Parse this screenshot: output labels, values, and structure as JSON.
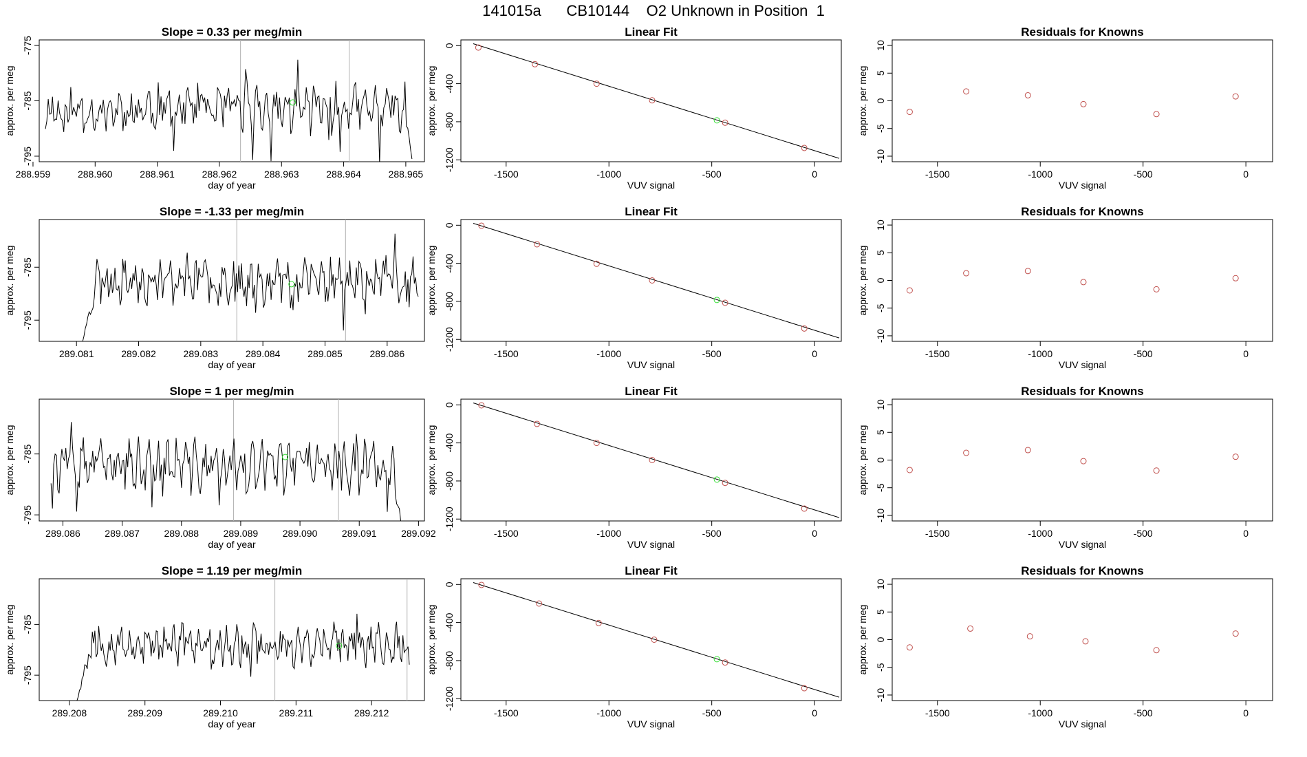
{
  "page_title": "141015a      CB10144    O2 Unknown in Position  1",
  "colors": {
    "trace": "#000000",
    "known": "#c0504d",
    "unknown": "#33dd33",
    "guide": "#b0b0b0",
    "fit": "#000000"
  },
  "chart_data": [
    {
      "type": "line",
      "role": "timeseries",
      "row": 0,
      "title": "Slope =  0.33  per meg/min",
      "xlabel": "day of year",
      "ylabel": "approx. per meg",
      "xlim": [
        288.9591,
        288.9653
      ],
      "ylim": [
        -796,
        -774
      ],
      "xticks": [
        288.959,
        288.96,
        288.961,
        288.962,
        288.963,
        288.964,
        288.965
      ],
      "xtick_labels": [
        "288.959",
        "288.960",
        "288.961",
        "288.962",
        "288.963",
        "288.964",
        "288.965"
      ],
      "yticks": [
        -775,
        -785,
        -795
      ],
      "ytick_labels": [
        "-775",
        "-785",
        "-795"
      ],
      "trace_start": 288.9592,
      "trace_end": 288.9651,
      "trace_level": -786.5,
      "trace_amp": 3.2,
      "seed": 11,
      "trace_final": -795.5,
      "vlines": [
        288.96234,
        288.96409
      ],
      "marker": {
        "x": 288.96318,
        "y": -785.3
      }
    },
    {
      "type": "scatter",
      "role": "fit",
      "row": 0,
      "title": "Linear Fit",
      "xlabel": "VUV signal",
      "ylabel": "approx. per meg",
      "xlim": [
        -1720,
        130
      ],
      "ylim": [
        -1220,
        60
      ],
      "xticks": [
        -1500,
        -1000,
        -500,
        0
      ],
      "xtick_labels": [
        "-1500",
        "-1000",
        "-500",
        "0"
      ],
      "yticks": [
        0,
        -400,
        -800,
        -1200
      ],
      "ytick_labels": [
        "0",
        "-400",
        "-800",
        "-1200"
      ],
      "line": [
        [
          -1660,
          20
        ],
        [
          120,
          -1185
        ]
      ],
      "knowns": [
        [
          -1635,
          -20
        ],
        [
          -1360,
          -195
        ],
        [
          -1060,
          -400
        ],
        [
          -790,
          -575
        ],
        [
          -435,
          -810
        ],
        [
          -50,
          -1075
        ]
      ],
      "unknown": [
        [
          -475,
          -785
        ]
      ]
    },
    {
      "type": "scatter",
      "role": "residuals",
      "row": 0,
      "title": "Residuals for Knowns",
      "xlabel": "VUV signal",
      "ylabel": "approx. per meg",
      "xlim": [
        -1720,
        130
      ],
      "ylim": [
        -11,
        11
      ],
      "xticks": [
        -1500,
        -1000,
        -500,
        0
      ],
      "xtick_labels": [
        "-1500",
        "-1000",
        "-500",
        "0"
      ],
      "yticks": [
        10,
        5,
        0,
        -5,
        -10
      ],
      "ytick_labels": [
        "10",
        "5",
        "0",
        "-5",
        "-10"
      ],
      "points": [
        [
          -1635,
          -2.0
        ],
        [
          -1360,
          1.7
        ],
        [
          -1060,
          1.0
        ],
        [
          -790,
          -0.6
        ],
        [
          -435,
          -2.4
        ],
        [
          -50,
          0.8
        ]
      ]
    },
    {
      "type": "line",
      "role": "timeseries",
      "row": 1,
      "title": "Slope =  -1.33  per meg/min",
      "xlabel": "day of year",
      "ylabel": "approx. per meg",
      "xlim": [
        289.0804,
        289.0866
      ],
      "ylim": [
        -799,
        -776
      ],
      "xticks": [
        289.081,
        289.082,
        289.083,
        289.084,
        289.085,
        289.086
      ],
      "xtick_labels": [
        "289.081",
        "289.082",
        "289.083",
        "289.084",
        "289.085",
        "289.086"
      ],
      "yticks": [
        -785,
        -795
      ],
      "ytick_labels": [
        "-785",
        "-795"
      ],
      "trace_start": 289.0811,
      "trace_end": 289.0865,
      "trace_level": -787.5,
      "trace_amp": 3.3,
      "seed": 23,
      "trace_initial": -799,
      "vlines": [
        289.08358,
        289.08533
      ],
      "marker": {
        "x": 289.08446,
        "y": -788.2
      }
    },
    {
      "type": "scatter",
      "role": "fit",
      "row": 1,
      "title": "Linear Fit",
      "xlabel": "VUV signal",
      "ylabel": "approx. per meg",
      "xlim": [
        -1720,
        130
      ],
      "ylim": [
        -1220,
        60
      ],
      "xticks": [
        -1500,
        -1000,
        -500,
        0
      ],
      "xtick_labels": [
        "-1500",
        "-1000",
        "-500",
        "0"
      ],
      "yticks": [
        0,
        -400,
        -800,
        -1200
      ],
      "ytick_labels": [
        "0",
        "-400",
        "-800",
        "-1200"
      ],
      "line": [
        [
          -1660,
          20
        ],
        [
          120,
          -1185
        ]
      ],
      "knowns": [
        [
          -1620,
          -5
        ],
        [
          -1350,
          -200
        ],
        [
          -1060,
          -405
        ],
        [
          -790,
          -580
        ],
        [
          -435,
          -815
        ],
        [
          -50,
          -1085
        ]
      ],
      "unknown": [
        [
          -475,
          -785
        ]
      ]
    },
    {
      "type": "scatter",
      "role": "residuals",
      "row": 1,
      "title": "Residuals for Knowns",
      "xlabel": "VUV signal",
      "ylabel": "approx. per meg",
      "xlim": [
        -1720,
        130
      ],
      "ylim": [
        -11,
        11
      ],
      "xticks": [
        -1500,
        -1000,
        -500,
        0
      ],
      "xtick_labels": [
        "-1500",
        "-1000",
        "-500",
        "0"
      ],
      "yticks": [
        10,
        5,
        0,
        -5,
        -10
      ],
      "ytick_labels": [
        "10",
        "5",
        "0",
        "-5",
        "-10"
      ],
      "points": [
        [
          -1635,
          -1.8
        ],
        [
          -1360,
          1.3
        ],
        [
          -1060,
          1.7
        ],
        [
          -790,
          -0.3
        ],
        [
          -435,
          -1.6
        ],
        [
          -50,
          0.4
        ]
      ]
    },
    {
      "type": "line",
      "role": "timeseries",
      "row": 2,
      "title": "Slope =  1  per meg/min",
      "xlabel": "day of year",
      "ylabel": "approx. per meg",
      "xlim": [
        289.0856,
        289.0921
      ],
      "ylim": [
        -796,
        -776
      ],
      "xticks": [
        289.086,
        289.087,
        289.088,
        289.089,
        289.09,
        289.091,
        289.092
      ],
      "xtick_labels": [
        "289.086",
        "289.087",
        "289.088",
        "289.089",
        "289.090",
        "289.091",
        "289.092"
      ],
      "yticks": [
        -785,
        -795
      ],
      "ytick_labels": [
        "-785",
        "-795"
      ],
      "trace_start": 289.0858,
      "trace_end": 289.0917,
      "trace_level": -787.0,
      "trace_amp": 3.2,
      "seed": 37,
      "trace_final": -796,
      "vlines": [
        289.08888,
        289.09065
      ],
      "marker": {
        "x": 289.08975,
        "y": -785.5
      }
    },
    {
      "type": "scatter",
      "role": "fit",
      "row": 2,
      "title": "Linear Fit",
      "xlabel": "VUV signal",
      "ylabel": "approx. per meg",
      "xlim": [
        -1720,
        130
      ],
      "ylim": [
        -1220,
        60
      ],
      "xticks": [
        -1500,
        -1000,
        -500,
        0
      ],
      "xtick_labels": [
        "-1500",
        "-1000",
        "-500",
        "0"
      ],
      "yticks": [
        0,
        -400,
        -800,
        -1200
      ],
      "ytick_labels": [
        "0",
        "-400",
        "-800",
        "-1200"
      ],
      "line": [
        [
          -1660,
          20
        ],
        [
          120,
          -1185
        ]
      ],
      "knowns": [
        [
          -1620,
          -5
        ],
        [
          -1350,
          -200
        ],
        [
          -1060,
          -400
        ],
        [
          -790,
          -580
        ],
        [
          -435,
          -820
        ],
        [
          -50,
          -1090
        ]
      ],
      "unknown": [
        [
          -475,
          -785
        ]
      ]
    },
    {
      "type": "scatter",
      "role": "residuals",
      "row": 2,
      "title": "Residuals for Knowns",
      "xlabel": "VUV signal",
      "ylabel": "approx. per meg",
      "xlim": [
        -1720,
        130
      ],
      "ylim": [
        -11,
        11
      ],
      "xticks": [
        -1500,
        -1000,
        -500,
        0
      ],
      "xtick_labels": [
        "-1500",
        "-1000",
        "-500",
        "0"
      ],
      "yticks": [
        10,
        5,
        0,
        -5,
        -10
      ],
      "ytick_labels": [
        "10",
        "5",
        "0",
        "-5",
        "-10"
      ],
      "points": [
        [
          -1635,
          -1.8
        ],
        [
          -1360,
          1.3
        ],
        [
          -1060,
          1.8
        ],
        [
          -790,
          -0.2
        ],
        [
          -435,
          -1.9
        ],
        [
          -50,
          0.6
        ]
      ]
    },
    {
      "type": "line",
      "role": "timeseries",
      "row": 3,
      "title": "Slope =  1.19  per meg/min",
      "xlabel": "day of year",
      "ylabel": "approx. per meg",
      "xlim": [
        289.2076,
        289.2127
      ],
      "ylim": [
        -800,
        -776
      ],
      "xticks": [
        289.208,
        289.209,
        289.21,
        289.211,
        289.212
      ],
      "xtick_labels": [
        "289.208",
        "289.209",
        "289.210",
        "289.211",
        "289.212"
      ],
      "yticks": [
        -785,
        -795
      ],
      "ytick_labels": [
        "-785",
        "-795"
      ],
      "trace_start": 289.2081,
      "trace_end": 289.2125,
      "trace_level": -789.0,
      "trace_amp": 3.0,
      "seed": 53,
      "trace_initial": -800,
      "vlines": [
        289.21072,
        289.21247
      ],
      "marker": {
        "x": 289.21157,
        "y": -789.2
      }
    },
    {
      "type": "scatter",
      "role": "fit",
      "row": 3,
      "title": "Linear Fit",
      "xlabel": "VUV signal",
      "ylabel": "approx. per meg",
      "xlim": [
        -1720,
        130
      ],
      "ylim": [
        -1220,
        60
      ],
      "xticks": [
        -1500,
        -1000,
        -500,
        0
      ],
      "xtick_labels": [
        "-1500",
        "-1000",
        "-500",
        "0"
      ],
      "yticks": [
        0,
        -400,
        -800,
        -1200
      ],
      "ytick_labels": [
        "0",
        "-400",
        "-800",
        "-1200"
      ],
      "line": [
        [
          -1660,
          20
        ],
        [
          120,
          -1185
        ]
      ],
      "knowns": [
        [
          -1620,
          -5
        ],
        [
          -1340,
          -200
        ],
        [
          -1050,
          -405
        ],
        [
          -780,
          -580
        ],
        [
          -435,
          -820
        ],
        [
          -50,
          -1090
        ]
      ],
      "unknown": [
        [
          -475,
          -785
        ]
      ]
    },
    {
      "type": "scatter",
      "role": "residuals",
      "row": 3,
      "title": "Residuals for Knowns",
      "xlabel": "VUV signal",
      "ylabel": "approx. per meg",
      "xlim": [
        -1720,
        130
      ],
      "ylim": [
        -11,
        11
      ],
      "xticks": [
        -1500,
        -1000,
        -500,
        0
      ],
      "xtick_labels": [
        "-1500",
        "-1000",
        "-500",
        "0"
      ],
      "yticks": [
        10,
        5,
        0,
        -5,
        -10
      ],
      "ytick_labels": [
        "10",
        "5",
        "0",
        "-5",
        "-10"
      ],
      "points": [
        [
          -1635,
          -1.4
        ],
        [
          -1340,
          2.0
        ],
        [
          -1050,
          0.6
        ],
        [
          -780,
          -0.3
        ],
        [
          -435,
          -1.9
        ],
        [
          -50,
          1.1
        ]
      ]
    }
  ]
}
